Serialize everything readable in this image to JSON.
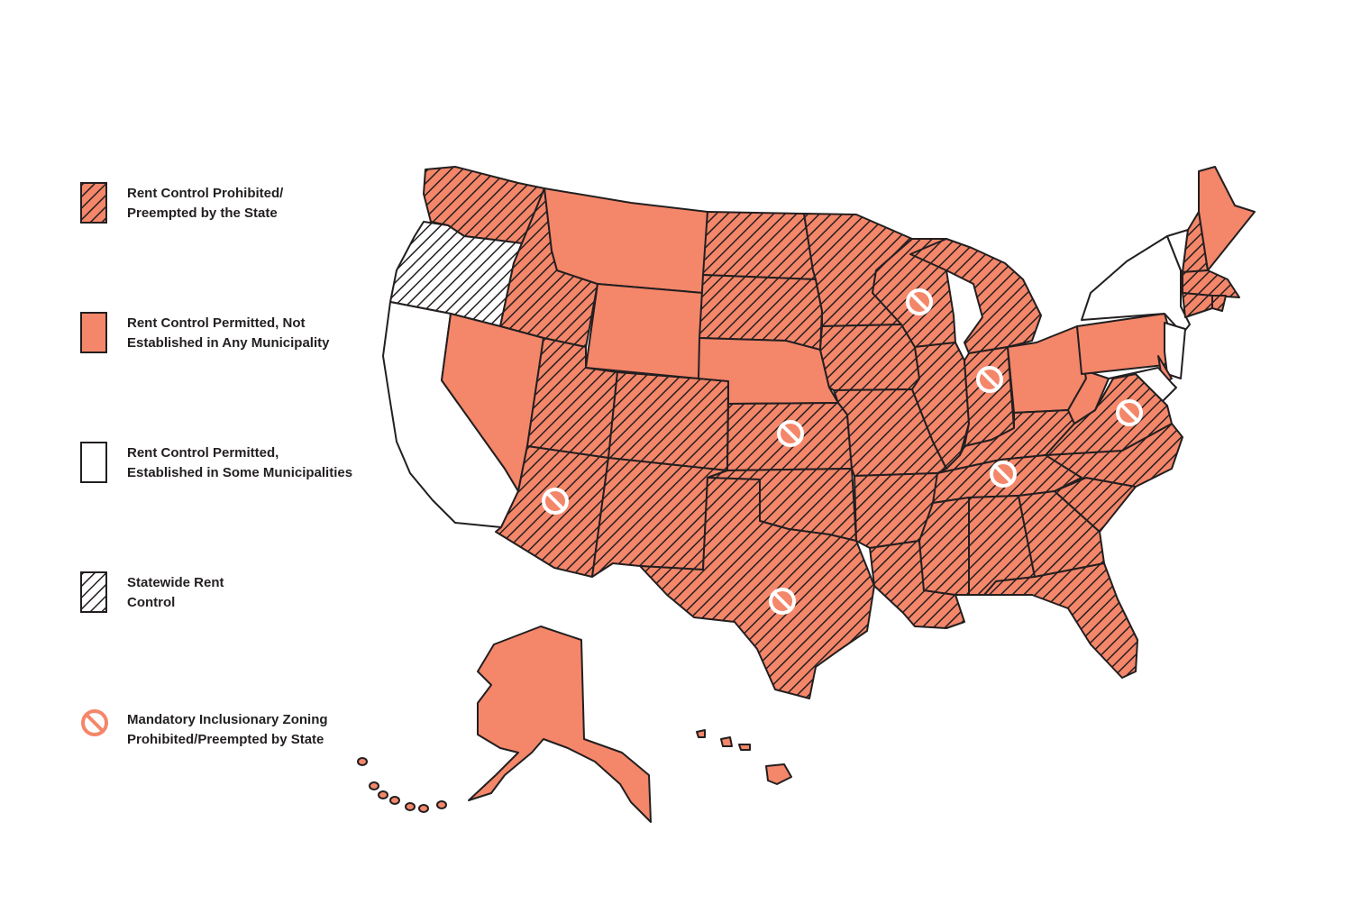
{
  "legend": {
    "items": [
      {
        "key": "prohibited",
        "label": "Rent Control Prohibited/\nPreempted by the State"
      },
      {
        "key": "permitted_none",
        "label": "Rent Control Permitted, Not\nEstablished in Any Municipality"
      },
      {
        "key": "permitted_some",
        "label": "Rent Control Permitted,\nEstablished in Some Municipalities"
      },
      {
        "key": "statewide",
        "label": "Statewide Rent\nControl"
      },
      {
        "key": "inclusionary",
        "label": "Mandatory Inclusionary Zoning\nProhibited/Preempted by State"
      }
    ]
  },
  "colors": {
    "fill": "#f4866a",
    "stroke": "#231f20",
    "ban": "#f4866a",
    "white": "#ffffff"
  },
  "icons": {
    "ban": "prohibition-icon"
  },
  "map_data": {
    "states": {
      "WA": "prohibited",
      "OR": "statewide",
      "CA": "permitted_some",
      "ID": "prohibited",
      "NV": "permitted_none",
      "MT": "permitted_none",
      "WY": "permitted_none",
      "UT": "prohibited",
      "AZ": "prohibited",
      "CO": "prohibited",
      "NM": "prohibited",
      "ND": "prohibited",
      "SD": "prohibited",
      "NE": "permitted_none",
      "KS": "prohibited",
      "OK": "prohibited",
      "TX": "prohibited",
      "MN": "prohibited",
      "IA": "prohibited",
      "MO": "prohibited",
      "AR": "prohibited",
      "LA": "prohibited",
      "WI": "prohibited",
      "IL": "prohibited",
      "MI": "prohibited",
      "IN": "prohibited",
      "OH": "permitted_none",
      "KY": "prohibited",
      "TN": "prohibited",
      "MS": "prohibited",
      "AL": "prohibited",
      "GA": "prohibited",
      "FL": "prohibited",
      "SC": "prohibited",
      "NC": "prohibited",
      "VA": "prohibited",
      "WV": "permitted_none",
      "PA": "permitted_none",
      "NY": "permitted_some",
      "VT": "permitted_some",
      "NH": "prohibited",
      "ME": "permitted_none",
      "MA": "prohibited",
      "RI": "prohibited",
      "CT": "prohibited",
      "NJ": "permitted_some",
      "DE": "permitted_none",
      "MD": "permitted_some",
      "AK": "permitted_none",
      "HI": "permitted_none"
    },
    "inclusionary_zoning_prohibited": [
      "WI",
      "IN",
      "KS",
      "AZ",
      "TX",
      "TN",
      "VA"
    ]
  }
}
